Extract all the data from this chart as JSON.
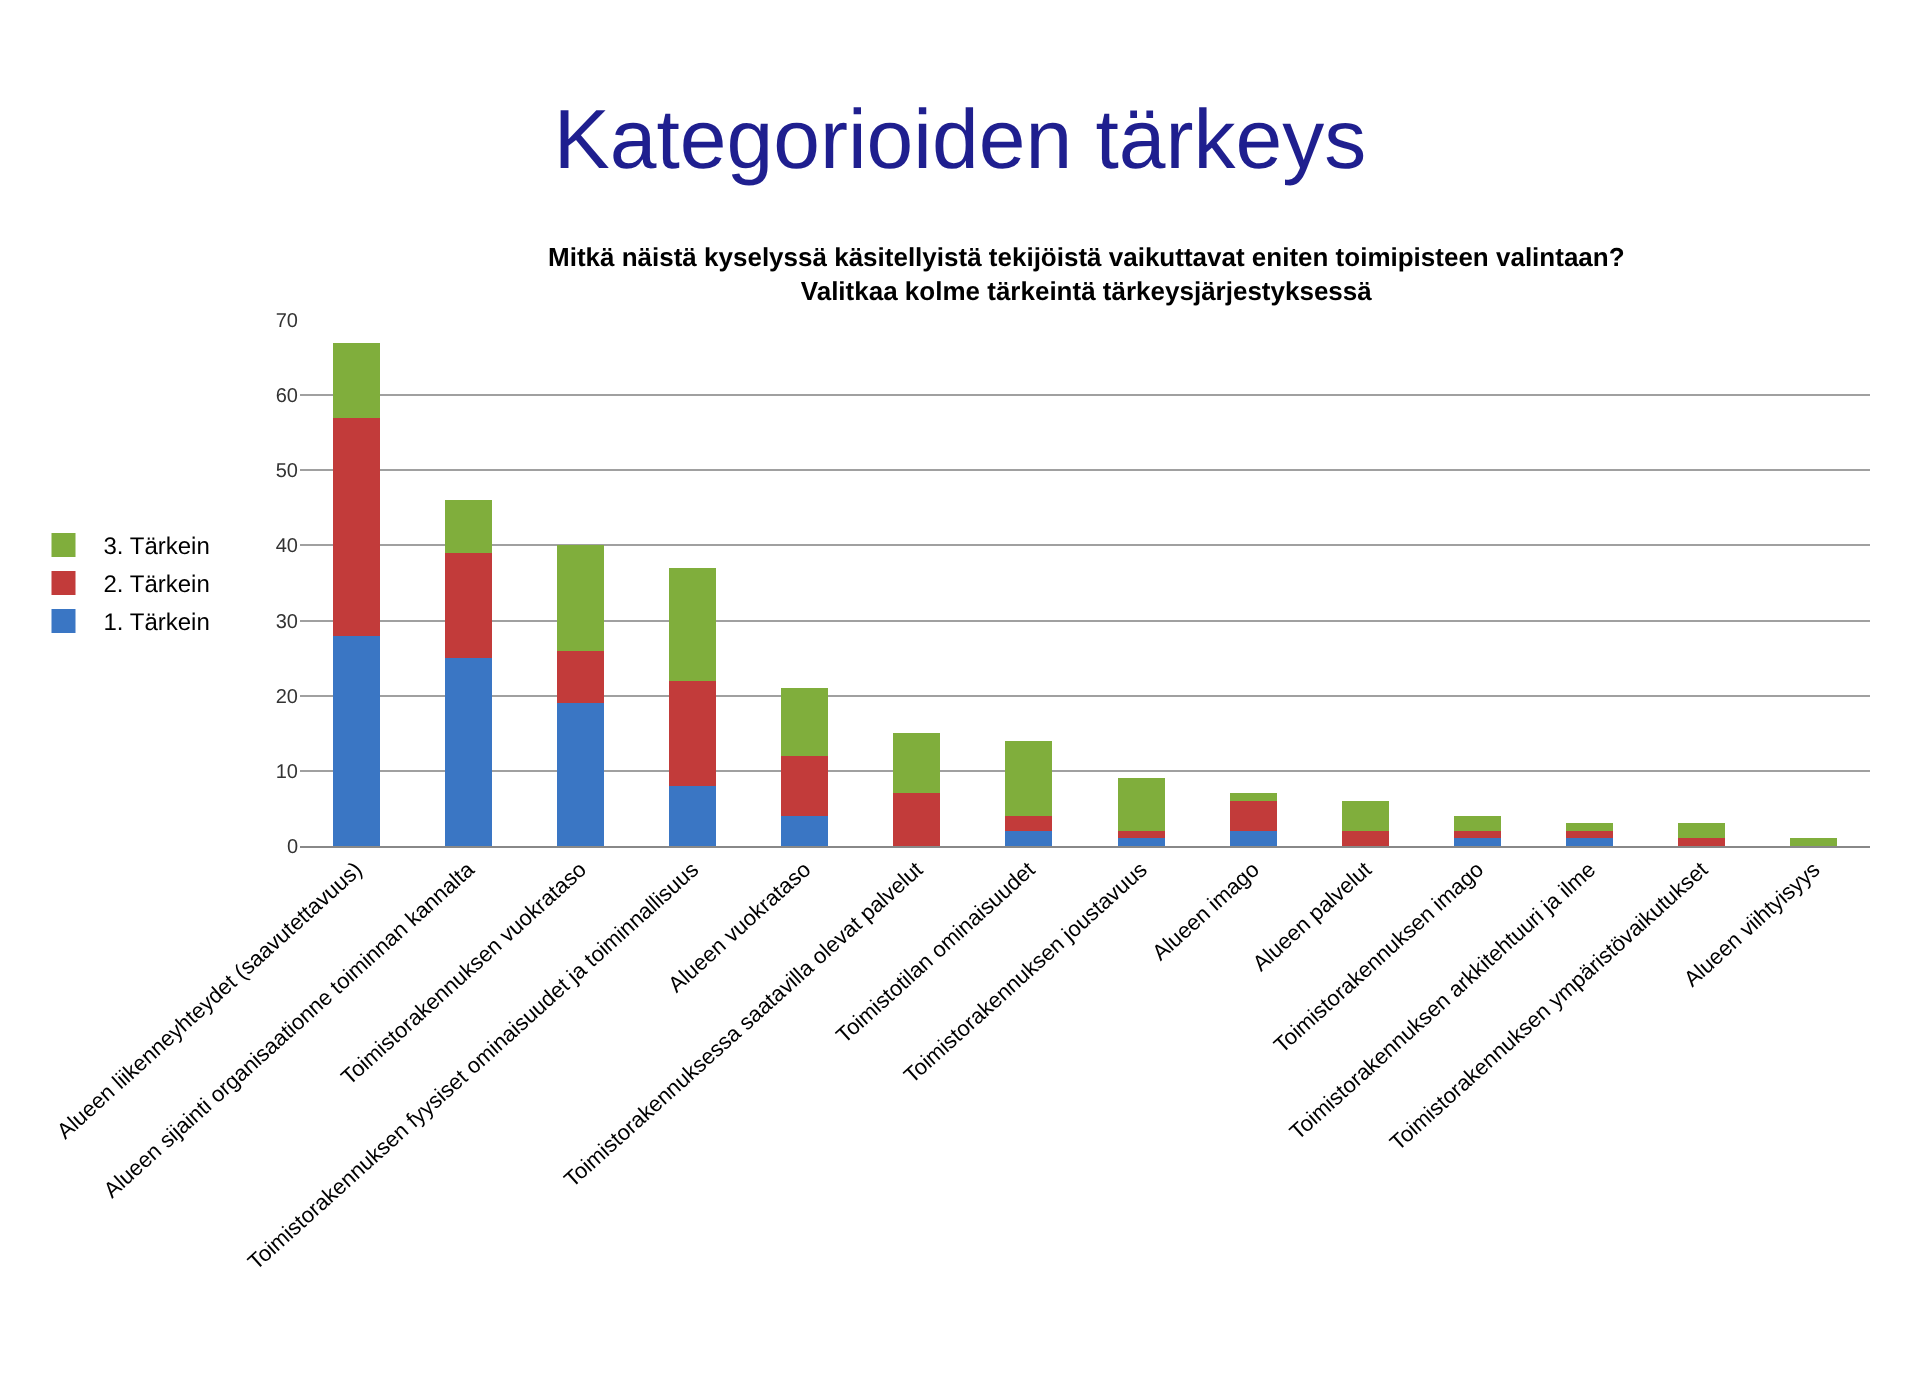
{
  "chart_data": {
    "type": "bar",
    "title": "Kategorioiden tärkeys",
    "subtitle": "Mitkä näistä kyselyssä käsitellyistä tekijöistä vaikuttavat eniten toimipisteen valintaan?\nValitkaa kolme tärkeintä tärkeysjärjestyksessä",
    "categories": [
      "Alueen liikenneyhteydet (saavutettavuus)",
      "Alueen sijainti organisaationne toiminnan kannalta",
      "Toimistorakennuksen vuokrataso",
      "Toimistorakennuksen fyysiset ominaisuudet ja toiminnallisuus",
      "Alueen vuokrataso",
      "Toimistorakennuksessa saatavilla olevat palvelut",
      "Toimistotilan ominaisuudet",
      "Toimistorakennuksen joustavuus",
      "Alueen imago",
      "Alueen palvelut",
      "Toimistorakennuksen imago",
      "Toimistorakennuksen arkkitehtuuri ja ilme",
      "Toimistorakennuksen ympäristövaikutukset",
      "Alueen viihtyisyys"
    ],
    "series": [
      {
        "name": "1. Tärkein",
        "color": "#3a76c4",
        "values": [
          28,
          25,
          19,
          8,
          4,
          0,
          2,
          1,
          2,
          0,
          1,
          1,
          0,
          0
        ]
      },
      {
        "name": "2. Tärkein",
        "color": "#c23b3a",
        "values": [
          29,
          14,
          7,
          14,
          8,
          7,
          2,
          1,
          4,
          2,
          1,
          1,
          1,
          0
        ]
      },
      {
        "name": "3. Tärkein",
        "color": "#80ae3c",
        "values": [
          10,
          7,
          14,
          15,
          9,
          8,
          10,
          7,
          1,
          4,
          2,
          1,
          2,
          1
        ]
      }
    ],
    "stacked": true,
    "ylim": [
      0,
      70
    ],
    "yticks": [
      0,
      10,
      20,
      30,
      40,
      50,
      60,
      70
    ],
    "grid": "y",
    "legend": "left"
  }
}
